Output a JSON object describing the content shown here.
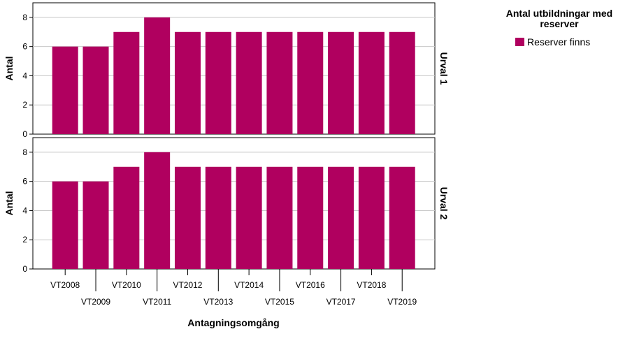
{
  "chart_data": {
    "type": "bar",
    "xlabel": "Antagningsomgång",
    "ylabel": "Antal",
    "legend": {
      "title": "Antal utbildningar med reserver",
      "placement": "top-right",
      "entries": [
        {
          "name": "Reserver finns",
          "color": "#b0005f"
        }
      ]
    },
    "categories": [
      "VT2008",
      "VT2009",
      "VT2010",
      "VT2011",
      "VT2012",
      "VT2013",
      "VT2014",
      "VT2015",
      "VT2016",
      "VT2017",
      "VT2018",
      "VT2019"
    ],
    "ylim": [
      0,
      9
    ],
    "yticks": [
      0,
      2,
      4,
      6,
      8
    ],
    "grid": true,
    "panels": [
      {
        "label": "Urval 1",
        "series": [
          {
            "name": "Reserver finns",
            "values": [
              6,
              6,
              7,
              8,
              7,
              7,
              7,
              7,
              7,
              7,
              7,
              7
            ]
          }
        ]
      },
      {
        "label": "Urval 2",
        "series": [
          {
            "name": "Reserver finns",
            "values": [
              6,
              6,
              7,
              8,
              7,
              7,
              7,
              7,
              7,
              7,
              7,
              7
            ]
          }
        ]
      }
    ]
  }
}
